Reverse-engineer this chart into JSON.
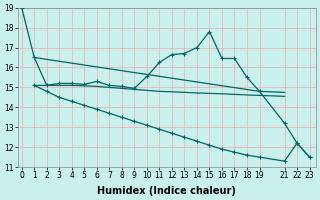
{
  "background_color": "#caf0ee",
  "grid_color": "#f0aaaa",
  "line_color": "#006666",
  "xlabel": "Humidex (Indice chaleur)",
  "ylim": [
    11,
    19
  ],
  "yticks": [
    11,
    12,
    13,
    14,
    15,
    16,
    17,
    18,
    19
  ],
  "xtick_positions": [
    0,
    1,
    2,
    3,
    4,
    5,
    6,
    7,
    8,
    9,
    10,
    11,
    12,
    13,
    14,
    15,
    16,
    17,
    18,
    19,
    21,
    22,
    23
  ],
  "xtick_labels": [
    "0",
    "1",
    "2",
    "3",
    "4",
    "5",
    "6",
    "7",
    "8",
    "9",
    "10",
    "11",
    "12",
    "13",
    "14",
    "15",
    "16",
    "17",
    "18",
    "19",
    "21",
    "22",
    "23"
  ],
  "line1_x": [
    0,
    1,
    2,
    3,
    4,
    5,
    6,
    7,
    8,
    9,
    10,
    11,
    12,
    13,
    14,
    15,
    16,
    17,
    18,
    19,
    21,
    22,
    23
  ],
  "line1_y": [
    19.0,
    16.5,
    15.1,
    15.2,
    15.2,
    15.15,
    15.3,
    15.1,
    15.05,
    14.95,
    15.55,
    16.25,
    16.65,
    16.7,
    17.0,
    17.8,
    16.45,
    16.45,
    15.5,
    14.8,
    13.2,
    12.2,
    11.5
  ],
  "line1_marker": true,
  "line2_x": [
    1,
    19,
    21
  ],
  "line2_y": [
    16.5,
    14.8,
    14.75
  ],
  "line2_marker": false,
  "line3_x": [
    1,
    2,
    3,
    4,
    5,
    6,
    7,
    8,
    9,
    10,
    11,
    12,
    13,
    14,
    15,
    16,
    17,
    18,
    19,
    21
  ],
  "line3_y": [
    15.1,
    15.1,
    15.1,
    15.1,
    15.08,
    15.05,
    15.0,
    14.95,
    14.9,
    14.85,
    14.8,
    14.78,
    14.75,
    14.72,
    14.7,
    14.68,
    14.65,
    14.62,
    14.6,
    14.55
  ],
  "line3_marker": false,
  "line4_x": [
    1,
    2,
    3,
    4,
    5,
    6,
    7,
    8,
    9,
    10,
    11,
    12,
    13,
    14,
    15,
    16,
    17,
    18,
    19,
    21,
    22,
    23
  ],
  "line4_y": [
    15.1,
    14.8,
    14.5,
    14.3,
    14.1,
    13.9,
    13.7,
    13.5,
    13.3,
    13.1,
    12.9,
    12.7,
    12.5,
    12.3,
    12.1,
    11.9,
    11.75,
    11.6,
    11.5,
    11.3,
    12.2,
    11.5
  ],
  "line4_marker": true,
  "markersize": 3,
  "linewidth": 0.9,
  "font_size_tick": 5.5,
  "font_size_label": 7
}
